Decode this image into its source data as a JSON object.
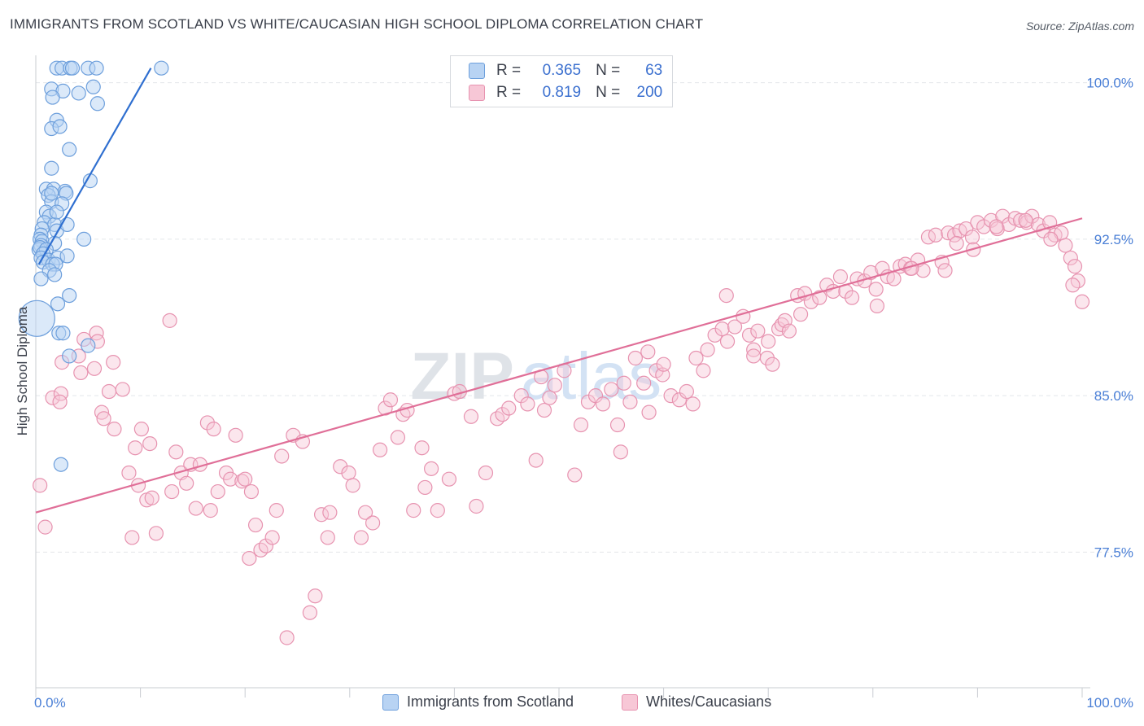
{
  "title": "IMMIGRANTS FROM SCOTLAND VS WHITE/CAUCASIAN HIGH SCHOOL DIPLOMA CORRELATION CHART",
  "source": "Source: ZipAtlas.com",
  "watermark": {
    "zip": "ZIP",
    "atlas": "atlas"
  },
  "stats": [
    {
      "r_label": "R =",
      "r_value": "0.365",
      "n_label": "N =",
      "n_value": "63"
    },
    {
      "r_label": "R =",
      "r_value": "0.819",
      "n_label": "N =",
      "n_value": "200"
    }
  ],
  "legend": {
    "series1": "Immigrants from Scotland",
    "series2": "Whites/Caucasians"
  },
  "colors": {
    "blue": "#6d9fdc",
    "blue_fill": "#b8d3f3",
    "blue_line": "#2f6fd0",
    "pink": "#e793b0",
    "pink_fill": "#f7c7d6",
    "pink_line": "#e06f98",
    "tick_text": "#4a7fd6",
    "grid": "#e4e6ea"
  },
  "chart_data": {
    "type": "scatter",
    "title": "IMMIGRANTS FROM SCOTLAND VS WHITE/CAUCASIAN HIGH SCHOOL DIPLOMA CORRELATION CHART",
    "xlabel": "",
    "ylabel": "High School Diploma",
    "xlim": [
      0,
      100
    ],
    "ylim": [
      71.0,
      101.0
    ],
    "x_tick_labels": [
      {
        "value": 0,
        "label": "0.0%"
      },
      {
        "value": 100,
        "label": "100.0%"
      }
    ],
    "y_ticks": [
      {
        "value": 100.0,
        "label": "100.0%"
      },
      {
        "value": 92.5,
        "label": "92.5%"
      },
      {
        "value": 85.0,
        "label": "85.0%"
      },
      {
        "value": 77.5,
        "label": "77.5%"
      }
    ],
    "series": [
      {
        "name": "Immigrants from Scotland",
        "color": "blue",
        "trend": {
          "x0": 0.3,
          "y0": 91.3,
          "x1": 11.0,
          "y1": 100.7
        },
        "points": [
          [
            2.0,
            100.7
          ],
          [
            2.5,
            100.7
          ],
          [
            3.3,
            100.7
          ],
          [
            3.5,
            100.7
          ],
          [
            5.0,
            100.7
          ],
          [
            5.8,
            100.7
          ],
          [
            12.0,
            100.7
          ],
          [
            1.5,
            99.7
          ],
          [
            2.6,
            99.6
          ],
          [
            5.5,
            99.8
          ],
          [
            1.6,
            99.3
          ],
          [
            4.1,
            99.5
          ],
          [
            5.9,
            99.0
          ],
          [
            2.0,
            98.2
          ],
          [
            1.5,
            97.8
          ],
          [
            2.3,
            97.9
          ],
          [
            3.2,
            96.8
          ],
          [
            1.5,
            95.9
          ],
          [
            5.2,
            95.3
          ],
          [
            1.0,
            94.9
          ],
          [
            1.7,
            94.9
          ],
          [
            1.2,
            94.6
          ],
          [
            2.8,
            94.8
          ],
          [
            2.9,
            94.7
          ],
          [
            1.5,
            94.3
          ],
          [
            2.5,
            94.2
          ],
          [
            1.0,
            93.8
          ],
          [
            1.3,
            93.6
          ],
          [
            0.8,
            93.3
          ],
          [
            1.8,
            93.2
          ],
          [
            0.6,
            93.0
          ],
          [
            2.0,
            92.9
          ],
          [
            0.5,
            92.7
          ],
          [
            0.4,
            92.5
          ],
          [
            0.6,
            92.4
          ],
          [
            0.5,
            92.2
          ],
          [
            1.8,
            92.3
          ],
          [
            0.3,
            92.0
          ],
          [
            0.4,
            92.1
          ],
          [
            1.0,
            92.0
          ],
          [
            0.7,
            91.8
          ],
          [
            0.5,
            91.6
          ],
          [
            1.2,
            91.5
          ],
          [
            2.1,
            91.6
          ],
          [
            3.0,
            91.7
          ],
          [
            0.7,
            91.4
          ],
          [
            1.6,
            91.3
          ],
          [
            1.9,
            91.3
          ],
          [
            1.3,
            91.0
          ],
          [
            0.5,
            90.6
          ],
          [
            1.8,
            90.8
          ],
          [
            4.6,
            92.5
          ],
          [
            3.2,
            89.8
          ],
          [
            2.1,
            89.4
          ],
          [
            2.2,
            88.0
          ],
          [
            2.6,
            88.0
          ],
          [
            0.1,
            88.7
          ],
          [
            3.2,
            86.9
          ],
          [
            5.0,
            87.4
          ],
          [
            2.4,
            81.7
          ],
          [
            1.5,
            94.7
          ],
          [
            2.0,
            93.8
          ],
          [
            3.0,
            93.2
          ]
        ],
        "sizes": {
          "large_point_index": 56
        }
      },
      {
        "name": "Whites/Caucasians",
        "color": "pink",
        "trend": {
          "x0": 0.0,
          "y0": 79.4,
          "x1": 100.0,
          "y1": 93.5
        },
        "points": [
          [
            0.4,
            80.7
          ],
          [
            0.9,
            78.7
          ],
          [
            1.6,
            84.9
          ],
          [
            2.4,
            85.1
          ],
          [
            2.3,
            84.7
          ],
          [
            2.5,
            86.6
          ],
          [
            4.1,
            86.9
          ],
          [
            4.6,
            87.7
          ],
          [
            4.3,
            86.1
          ],
          [
            5.6,
            86.3
          ],
          [
            5.8,
            88.0
          ],
          [
            5.9,
            87.6
          ],
          [
            6.3,
            84.2
          ],
          [
            6.5,
            83.9
          ],
          [
            7.0,
            85.2
          ],
          [
            7.4,
            86.6
          ],
          [
            7.5,
            83.4
          ],
          [
            8.3,
            85.3
          ],
          [
            8.9,
            81.3
          ],
          [
            9.2,
            78.2
          ],
          [
            9.5,
            82.5
          ],
          [
            9.8,
            80.7
          ],
          [
            10.1,
            83.4
          ],
          [
            10.6,
            80.0
          ],
          [
            10.9,
            82.7
          ],
          [
            11.1,
            80.1
          ],
          [
            11.5,
            78.4
          ],
          [
            12.8,
            88.6
          ],
          [
            13.0,
            80.4
          ],
          [
            13.4,
            82.3
          ],
          [
            13.9,
            81.3
          ],
          [
            14.4,
            80.8
          ],
          [
            14.8,
            81.7
          ],
          [
            15.3,
            79.6
          ],
          [
            15.7,
            81.7
          ],
          [
            16.4,
            83.7
          ],
          [
            16.7,
            79.5
          ],
          [
            17.0,
            83.4
          ],
          [
            17.4,
            80.4
          ],
          [
            18.2,
            81.3
          ],
          [
            18.6,
            81.0
          ],
          [
            19.1,
            83.1
          ],
          [
            19.7,
            80.9
          ],
          [
            20.0,
            81.0
          ],
          [
            20.4,
            77.2
          ],
          [
            20.6,
            80.4
          ],
          [
            21.0,
            78.8
          ],
          [
            21.5,
            77.6
          ],
          [
            22.0,
            77.8
          ],
          [
            22.6,
            78.2
          ],
          [
            23.0,
            79.5
          ],
          [
            23.5,
            82.1
          ],
          [
            24.0,
            73.4
          ],
          [
            24.6,
            83.1
          ],
          [
            25.5,
            82.8
          ],
          [
            26.2,
            74.6
          ],
          [
            26.7,
            75.4
          ],
          [
            27.3,
            79.3
          ],
          [
            27.9,
            78.2
          ],
          [
            28.1,
            79.4
          ],
          [
            29.1,
            81.6
          ],
          [
            29.9,
            81.3
          ],
          [
            30.3,
            80.7
          ],
          [
            31.1,
            78.2
          ],
          [
            31.5,
            79.4
          ],
          [
            32.2,
            78.9
          ],
          [
            32.9,
            82.4
          ],
          [
            33.4,
            84.4
          ],
          [
            33.9,
            84.8
          ],
          [
            34.6,
            83.0
          ],
          [
            35.1,
            84.1
          ],
          [
            35.5,
            84.3
          ],
          [
            36.1,
            79.5
          ],
          [
            36.9,
            82.5
          ],
          [
            37.2,
            80.6
          ],
          [
            37.8,
            81.5
          ],
          [
            38.4,
            79.5
          ],
          [
            39.5,
            81.0
          ],
          [
            40.0,
            85.1
          ],
          [
            40.5,
            85.2
          ],
          [
            41.6,
            84.0
          ],
          [
            42.1,
            79.7
          ],
          [
            43.0,
            81.3
          ],
          [
            44.1,
            83.9
          ],
          [
            44.6,
            84.1
          ],
          [
            45.2,
            84.4
          ],
          [
            46.4,
            85.0
          ],
          [
            47.0,
            84.6
          ],
          [
            47.8,
            81.9
          ],
          [
            48.3,
            85.9
          ],
          [
            48.6,
            84.3
          ],
          [
            49.1,
            84.9
          ],
          [
            49.6,
            85.5
          ],
          [
            50.5,
            86.2
          ],
          [
            51.5,
            81.2
          ],
          [
            52.1,
            83.6
          ],
          [
            52.8,
            84.7
          ],
          [
            53.5,
            85.0
          ],
          [
            54.2,
            84.6
          ],
          [
            55.0,
            85.3
          ],
          [
            55.6,
            83.6
          ],
          [
            56.2,
            85.6
          ],
          [
            56.8,
            84.7
          ],
          [
            57.3,
            86.8
          ],
          [
            58.1,
            85.6
          ],
          [
            58.6,
            84.2
          ],
          [
            59.3,
            86.2
          ],
          [
            59.9,
            86.0
          ],
          [
            60.7,
            85.0
          ],
          [
            61.5,
            84.8
          ],
          [
            62.2,
            85.2
          ],
          [
            63.1,
            86.8
          ],
          [
            63.8,
            86.2
          ],
          [
            64.2,
            87.2
          ],
          [
            64.9,
            87.9
          ],
          [
            65.6,
            88.2
          ],
          [
            66.0,
            89.8
          ],
          [
            66.8,
            88.3
          ],
          [
            67.6,
            88.8
          ],
          [
            68.2,
            87.9
          ],
          [
            68.6,
            87.2
          ],
          [
            69.0,
            88.1
          ],
          [
            69.9,
            86.8
          ],
          [
            70.4,
            86.5
          ],
          [
            71.0,
            88.2
          ],
          [
            71.3,
            88.4
          ],
          [
            71.6,
            88.6
          ],
          [
            72.0,
            88.1
          ],
          [
            72.8,
            89.8
          ],
          [
            73.5,
            89.9
          ],
          [
            74.1,
            89.5
          ],
          [
            74.9,
            89.7
          ],
          [
            75.6,
            90.3
          ],
          [
            76.2,
            90.0
          ],
          [
            76.9,
            90.7
          ],
          [
            77.4,
            90.0
          ],
          [
            78.0,
            89.7
          ],
          [
            78.5,
            90.6
          ],
          [
            79.2,
            90.5
          ],
          [
            79.8,
            90.9
          ],
          [
            80.3,
            90.1
          ],
          [
            80.9,
            91.1
          ],
          [
            81.4,
            90.7
          ],
          [
            82.0,
            90.6
          ],
          [
            82.6,
            91.2
          ],
          [
            83.1,
            91.3
          ],
          [
            83.6,
            91.1
          ],
          [
            84.3,
            91.5
          ],
          [
            84.8,
            91.0
          ],
          [
            85.3,
            92.6
          ],
          [
            86.0,
            92.7
          ],
          [
            86.6,
            91.4
          ],
          [
            87.2,
            92.8
          ],
          [
            87.8,
            92.7
          ],
          [
            88.3,
            92.9
          ],
          [
            88.9,
            93.0
          ],
          [
            89.5,
            92.6
          ],
          [
            90.0,
            93.3
          ],
          [
            90.6,
            93.1
          ],
          [
            91.3,
            93.4
          ],
          [
            91.9,
            93.0
          ],
          [
            92.4,
            93.6
          ],
          [
            93.0,
            93.2
          ],
          [
            93.6,
            93.5
          ],
          [
            94.1,
            93.4
          ],
          [
            94.7,
            93.3
          ],
          [
            95.2,
            93.6
          ],
          [
            95.8,
            93.2
          ],
          [
            96.3,
            92.9
          ],
          [
            96.9,
            93.3
          ],
          [
            97.4,
            92.7
          ],
          [
            98.0,
            92.8
          ],
          [
            98.4,
            92.2
          ],
          [
            98.9,
            91.6
          ],
          [
            99.3,
            91.2
          ],
          [
            99.6,
            90.5
          ],
          [
            100.0,
            89.5
          ],
          [
            60.0,
            86.5
          ],
          [
            66.1,
            87.6
          ],
          [
            58.5,
            87.1
          ],
          [
            55.9,
            82.3
          ],
          [
            62.8,
            84.6
          ],
          [
            68.6,
            86.9
          ],
          [
            70.0,
            87.6
          ],
          [
            73.1,
            88.9
          ],
          [
            80.4,
            89.3
          ],
          [
            83.7,
            91.1
          ],
          [
            86.9,
            91.0
          ],
          [
            89.6,
            92.0
          ],
          [
            91.8,
            93.1
          ],
          [
            94.6,
            93.4
          ],
          [
            97.0,
            92.5
          ],
          [
            99.1,
            90.3
          ],
          [
            88.0,
            92.3
          ]
        ]
      }
    ]
  }
}
